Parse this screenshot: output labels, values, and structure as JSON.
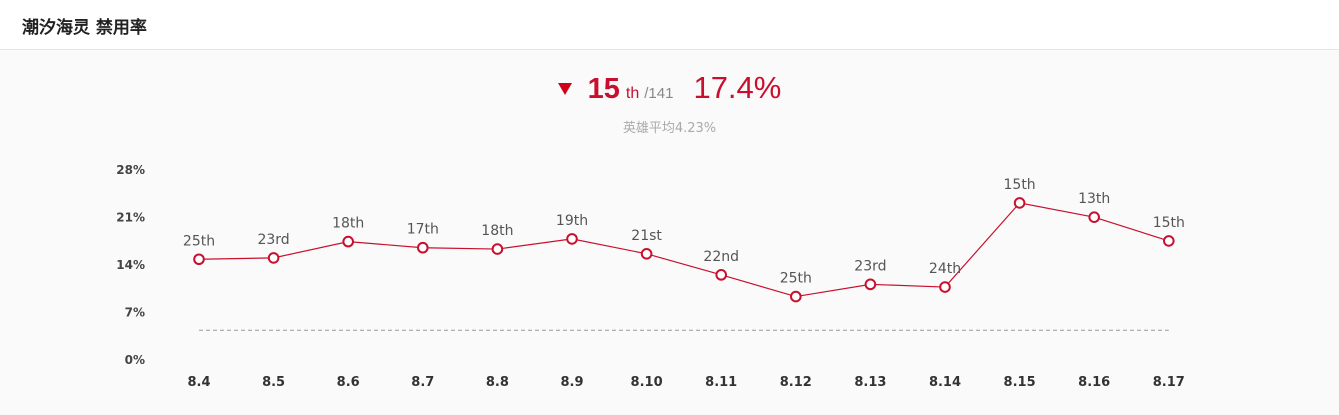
{
  "header": {
    "title": "潮汐海灵 禁用率"
  },
  "summary": {
    "trend_icon": "triangle-down-icon",
    "rank": "15",
    "rank_suffix": "th",
    "rank_total": "/141",
    "ban_rate": "17.4%",
    "average": "英雄平均4.23%"
  },
  "colors": {
    "accent": "#c8102e",
    "line": "#c8102e",
    "average_line": "#999999"
  },
  "chart_data": {
    "type": "line",
    "categories": [
      "8.4",
      "8.5",
      "8.6",
      "8.7",
      "8.8",
      "8.9",
      "8.10",
      "8.11",
      "8.12",
      "8.13",
      "8.14",
      "8.15",
      "8.16",
      "8.17"
    ],
    "values": [
      14.7,
      14.9,
      17.3,
      16.4,
      16.2,
      17.7,
      15.5,
      12.4,
      9.2,
      11.0,
      10.6,
      23.0,
      20.9,
      17.4
    ],
    "point_labels": [
      "25th",
      "23rd",
      "18th",
      "17th",
      "18th",
      "19th",
      "21st",
      "22nd",
      "25th",
      "23rd",
      "24th",
      "15th",
      "13th",
      "15th"
    ],
    "average_line": 4.23,
    "yticks": [
      "0%",
      "7%",
      "14%",
      "21%",
      "28%"
    ],
    "ylim": [
      0,
      28
    ],
    "grid": false,
    "legend": "none"
  }
}
